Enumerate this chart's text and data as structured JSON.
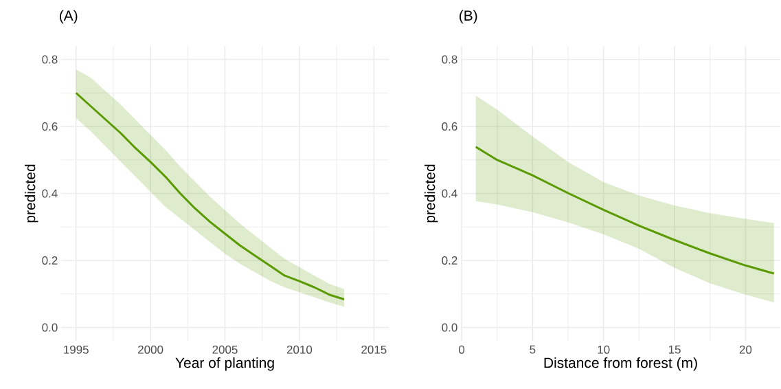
{
  "chart_data": [
    {
      "type": "line",
      "title": "(A)",
      "xlabel": "Year of planting",
      "ylabel": "predicted",
      "x": [
        1995,
        1996,
        1997,
        1998,
        1999,
        2000,
        2001,
        2002,
        2003,
        2004,
        2005,
        2006,
        2007,
        2008,
        2009,
        2010,
        2011,
        2012,
        2013
      ],
      "series": [
        {
          "color": "#5a9a00",
          "values": [
            0.7,
            0.66,
            0.62,
            0.58,
            0.535,
            0.494,
            0.45,
            0.4,
            0.355,
            0.315,
            0.28,
            0.245,
            0.215,
            0.185,
            0.155,
            0.138,
            0.12,
            0.098,
            0.084
          ],
          "upper": [
            0.77,
            0.745,
            0.705,
            0.665,
            0.62,
            0.575,
            0.53,
            0.48,
            0.435,
            0.39,
            0.35,
            0.31,
            0.275,
            0.24,
            0.205,
            0.18,
            0.155,
            0.13,
            0.115
          ],
          "lower": [
            0.625,
            0.585,
            0.54,
            0.495,
            0.45,
            0.405,
            0.36,
            0.325,
            0.29,
            0.255,
            0.22,
            0.19,
            0.165,
            0.14,
            0.12,
            0.105,
            0.09,
            0.075,
            0.062
          ]
        }
      ],
      "xlim": [
        1994,
        2016
      ],
      "ylim": [
        -0.04,
        0.84
      ],
      "xticks": [
        1995,
        2000,
        2005,
        2010,
        2015
      ],
      "yticks": [
        {
          "value": 0,
          "label": "0.0"
        },
        0.2,
        0.4,
        0.6,
        0.8
      ],
      "grid": true
    },
    {
      "type": "line",
      "title": "(B)",
      "xlabel": "Distance from forest (m)",
      "ylabel": "predicted",
      "x": [
        1,
        2.5,
        5,
        7.5,
        10,
        12.5,
        15,
        17.5,
        20,
        22
      ],
      "series": [
        {
          "color": "#5a9a00",
          "values": [
            0.539,
            0.5,
            0.454,
            0.401,
            0.351,
            0.304,
            0.261,
            0.221,
            0.185,
            0.161
          ],
          "upper": [
            0.692,
            0.65,
            0.57,
            0.494,
            0.434,
            0.394,
            0.364,
            0.341,
            0.324,
            0.312
          ],
          "lower": [
            0.377,
            0.367,
            0.344,
            0.314,
            0.278,
            0.235,
            0.178,
            0.132,
            0.098,
            0.075
          ]
        }
      ],
      "xlim": [
        -0.05,
        22.45
      ],
      "ylim": [
        -0.04,
        0.84
      ],
      "xticks": [
        0,
        5,
        10,
        15,
        20
      ],
      "yticks": [
        {
          "value": 0,
          "label": "0.0"
        },
        0.2,
        0.4,
        0.6,
        0.8
      ],
      "grid": true
    }
  ]
}
